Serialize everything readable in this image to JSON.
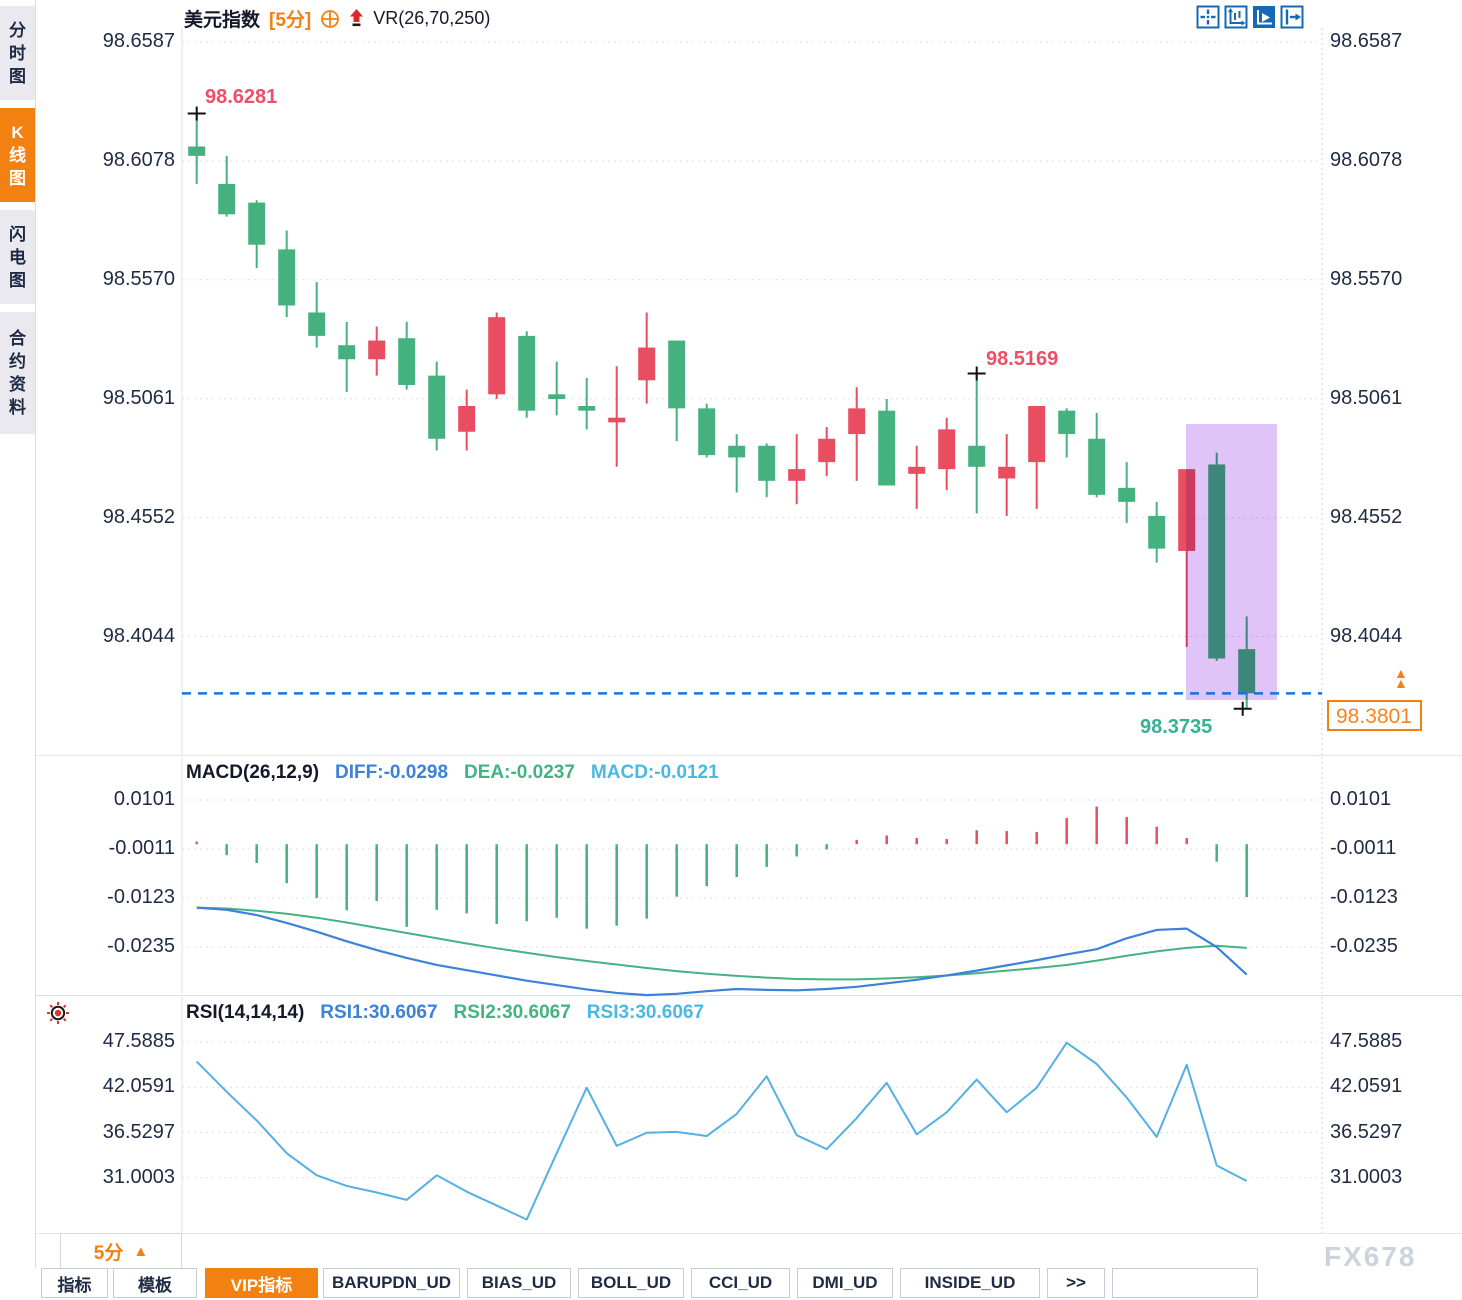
{
  "sidebar": {
    "tabs": [
      {
        "label": "分时图",
        "active": false
      },
      {
        "label": "K线图",
        "active": true
      },
      {
        "label": "闪电图",
        "active": false
      },
      {
        "label": "合约资料",
        "active": false
      }
    ]
  },
  "header": {
    "title": "美元指数",
    "interval_tag": "[5分]",
    "indicator": "VR(26,70,250)"
  },
  "toolbar": {
    "icons": [
      "pan-crosshair-icon",
      "axis-zoom-icon",
      "auto-scroll-icon",
      "jump-to-latest-icon"
    ],
    "active_icon": "auto-scroll-icon"
  },
  "main_chart": {
    "y_axis_labels": [
      "98.6587",
      "98.6078",
      "98.5570",
      "98.5061",
      "98.4552",
      "98.4044"
    ],
    "annotations": {
      "high": "98.6281",
      "swing_high": "98.5169",
      "low": "98.3735"
    },
    "current_price": "98.3801"
  },
  "macd_panel": {
    "title": "MACD(26,12,9)",
    "diff": "DIFF:-0.0298",
    "dea": "DEA:-0.0237",
    "macd": "MACD:-0.0121",
    "y_axis_labels": [
      "0.0101",
      "-0.0011",
      "-0.0123",
      "-0.0235"
    ]
  },
  "rsi_panel": {
    "title": "RSI(14,14,14)",
    "rsi1": "RSI1:30.6067",
    "rsi2": "RSI2:30.6067",
    "rsi3": "RSI3:30.6067",
    "y_axis_labels": [
      "47.5885",
      "42.0591",
      "36.5297",
      "31.0003"
    ]
  },
  "bottom": {
    "interval": "5分",
    "tabs": [
      "指标",
      "模板",
      "VIP指标",
      "BARUPDN_UD",
      "BIAS_UD",
      "BOLL_UD",
      "CCI_UD",
      "DMI_UD",
      "INSIDE_UD",
      ">>",
      ""
    ],
    "active_tab": "VIP指标",
    "watermark": "FX678"
  },
  "colors": {
    "accent_orange": "#f28111",
    "candle_up_red": "#e94d61",
    "candle_down_green": "#45b17e",
    "diff_blue": "#3b82d8",
    "dea_green": "#44b381",
    "macd_cyan": "#49b9e3",
    "rsi_blue": "#54b0e4",
    "annotation_red": "#ee4f66",
    "annotation_teal": "#33b295",
    "price_line_blue": "#1573e6",
    "highlight_purple": "#e0c3f7",
    "axis_text": "#1f2a44",
    "icon_blue": "#1668b4"
  },
  "chart_data": [
    {
      "type": "candlestick",
      "title": "美元指数 [5分] K线",
      "ylim": [
        98.3537,
        98.6647
      ],
      "y_ticks": [
        98.6587,
        98.6078,
        98.557,
        98.5061,
        98.4552,
        98.4044
      ],
      "open": [
        98.614,
        98.598,
        98.59,
        98.57,
        98.543,
        98.529,
        98.523,
        98.532,
        98.516,
        98.492,
        98.508,
        98.533,
        98.508,
        98.503,
        98.496,
        98.514,
        98.531,
        98.502,
        98.486,
        98.486,
        98.471,
        98.479,
        98.491,
        98.501,
        98.474,
        98.476,
        98.486,
        98.472,
        98.479,
        98.501,
        98.489,
        98.468,
        98.456,
        98.441,
        98.478,
        98.399
      ],
      "high": [
        98.6281,
        98.61,
        98.591,
        98.578,
        98.556,
        98.539,
        98.537,
        98.539,
        98.522,
        98.51,
        98.543,
        98.535,
        98.522,
        98.515,
        98.52,
        98.543,
        98.531,
        98.504,
        98.491,
        98.487,
        98.491,
        98.494,
        98.511,
        98.506,
        98.486,
        98.498,
        98.5169,
        98.491,
        98.503,
        98.502,
        98.5,
        98.479,
        98.462,
        98.476,
        98.483,
        98.413
      ],
      "low": [
        98.598,
        98.584,
        98.562,
        98.541,
        98.528,
        98.509,
        98.516,
        98.51,
        98.484,
        98.484,
        98.506,
        98.498,
        98.499,
        98.493,
        98.477,
        98.504,
        98.488,
        98.481,
        98.466,
        98.464,
        98.461,
        98.473,
        98.471,
        98.469,
        98.459,
        98.467,
        98.457,
        98.456,
        98.459,
        98.481,
        98.464,
        98.453,
        98.436,
        98.4,
        98.394,
        98.3735
      ],
      "close": [
        98.61,
        98.585,
        98.572,
        98.546,
        98.533,
        98.523,
        98.531,
        98.512,
        98.489,
        98.503,
        98.541,
        98.501,
        98.506,
        98.501,
        98.498,
        98.528,
        98.502,
        98.482,
        98.481,
        98.471,
        98.476,
        98.489,
        98.502,
        98.469,
        98.477,
        98.493,
        98.477,
        98.477,
        98.503,
        98.491,
        98.465,
        98.462,
        98.442,
        98.476,
        98.395,
        98.3801
      ],
      "annotations": {
        "high": 98.6281,
        "swing_high": 98.5169,
        "low": 98.3735,
        "current_price": 98.3801
      },
      "highlight_region": {
        "last_n_candles": 2
      },
      "legend_position": "none",
      "grid": "dotted-horizontal"
    },
    {
      "type": "bar+line",
      "title": "MACD(26,12,9)",
      "y_ticks": [
        0.0101,
        -0.0011,
        -0.0123,
        -0.0235
      ],
      "series": [
        {
          "name": "MACD_hist",
          "values": [
            0.0006,
            -0.0025,
            -0.0043,
            -0.0089,
            -0.0123,
            -0.0151,
            -0.013,
            -0.0189,
            -0.015,
            -0.0158,
            -0.0182,
            -0.0176,
            -0.0168,
            -0.0193,
            -0.0186,
            -0.017,
            -0.012,
            -0.0096,
            -0.0075,
            -0.0052,
            -0.0028,
            -0.0012,
            0.001,
            0.002,
            0.0014,
            0.0012,
            0.0032,
            0.003,
            0.0028,
            0.006,
            0.0086,
            0.0062,
            0.004,
            0.0014,
            -0.004,
            -0.0121
          ]
        },
        {
          "name": "DIFF",
          "values": [
            -0.0145,
            -0.015,
            -0.0162,
            -0.018,
            -0.02,
            -0.0222,
            -0.0242,
            -0.026,
            -0.0276,
            -0.0288,
            -0.03,
            -0.0312,
            -0.0322,
            -0.0332,
            -0.034,
            -0.0345,
            -0.0342,
            -0.0336,
            -0.0331,
            -0.0333,
            -0.0334,
            -0.0331,
            -0.0326,
            -0.0318,
            -0.031,
            -0.03,
            -0.0289,
            -0.0277,
            -0.0265,
            -0.0252,
            -0.024,
            -0.0215,
            -0.0196,
            -0.0193,
            -0.0235,
            -0.0298
          ]
        },
        {
          "name": "DEA",
          "values": [
            -0.0145,
            -0.0147,
            -0.0152,
            -0.0159,
            -0.0168,
            -0.0179,
            -0.0191,
            -0.0203,
            -0.0215,
            -0.0227,
            -0.0238,
            -0.0248,
            -0.0258,
            -0.0267,
            -0.0275,
            -0.0283,
            -0.029,
            -0.0296,
            -0.0301,
            -0.0305,
            -0.0308,
            -0.0309,
            -0.0309,
            -0.0307,
            -0.0304,
            -0.03,
            -0.0295,
            -0.0289,
            -0.0283,
            -0.0276,
            -0.0266,
            -0.0255,
            -0.0245,
            -0.0237,
            -0.0232,
            -0.0237
          ]
        }
      ],
      "grid": "dotted-horizontal"
    },
    {
      "type": "line",
      "title": "RSI(14,14,14)",
      "y_ticks": [
        47.5885,
        42.0591,
        36.5297,
        31.0003
      ],
      "series": [
        {
          "name": "RSI1",
          "values": [
            45.2,
            41.5,
            38.0,
            34.0,
            31.3,
            30.0,
            29.2,
            28.3,
            31.3,
            29.3,
            27.6,
            25.9,
            34.0,
            42.0,
            34.9,
            36.5,
            36.6,
            36.1,
            38.8,
            43.4,
            36.2,
            34.5,
            38.3,
            42.6,
            36.3,
            39.0,
            43.0,
            39.0,
            42.0,
            47.5,
            44.9,
            40.8,
            36.0,
            44.8,
            32.5,
            30.6
          ]
        }
      ],
      "grid": "dotted-horizontal"
    }
  ]
}
